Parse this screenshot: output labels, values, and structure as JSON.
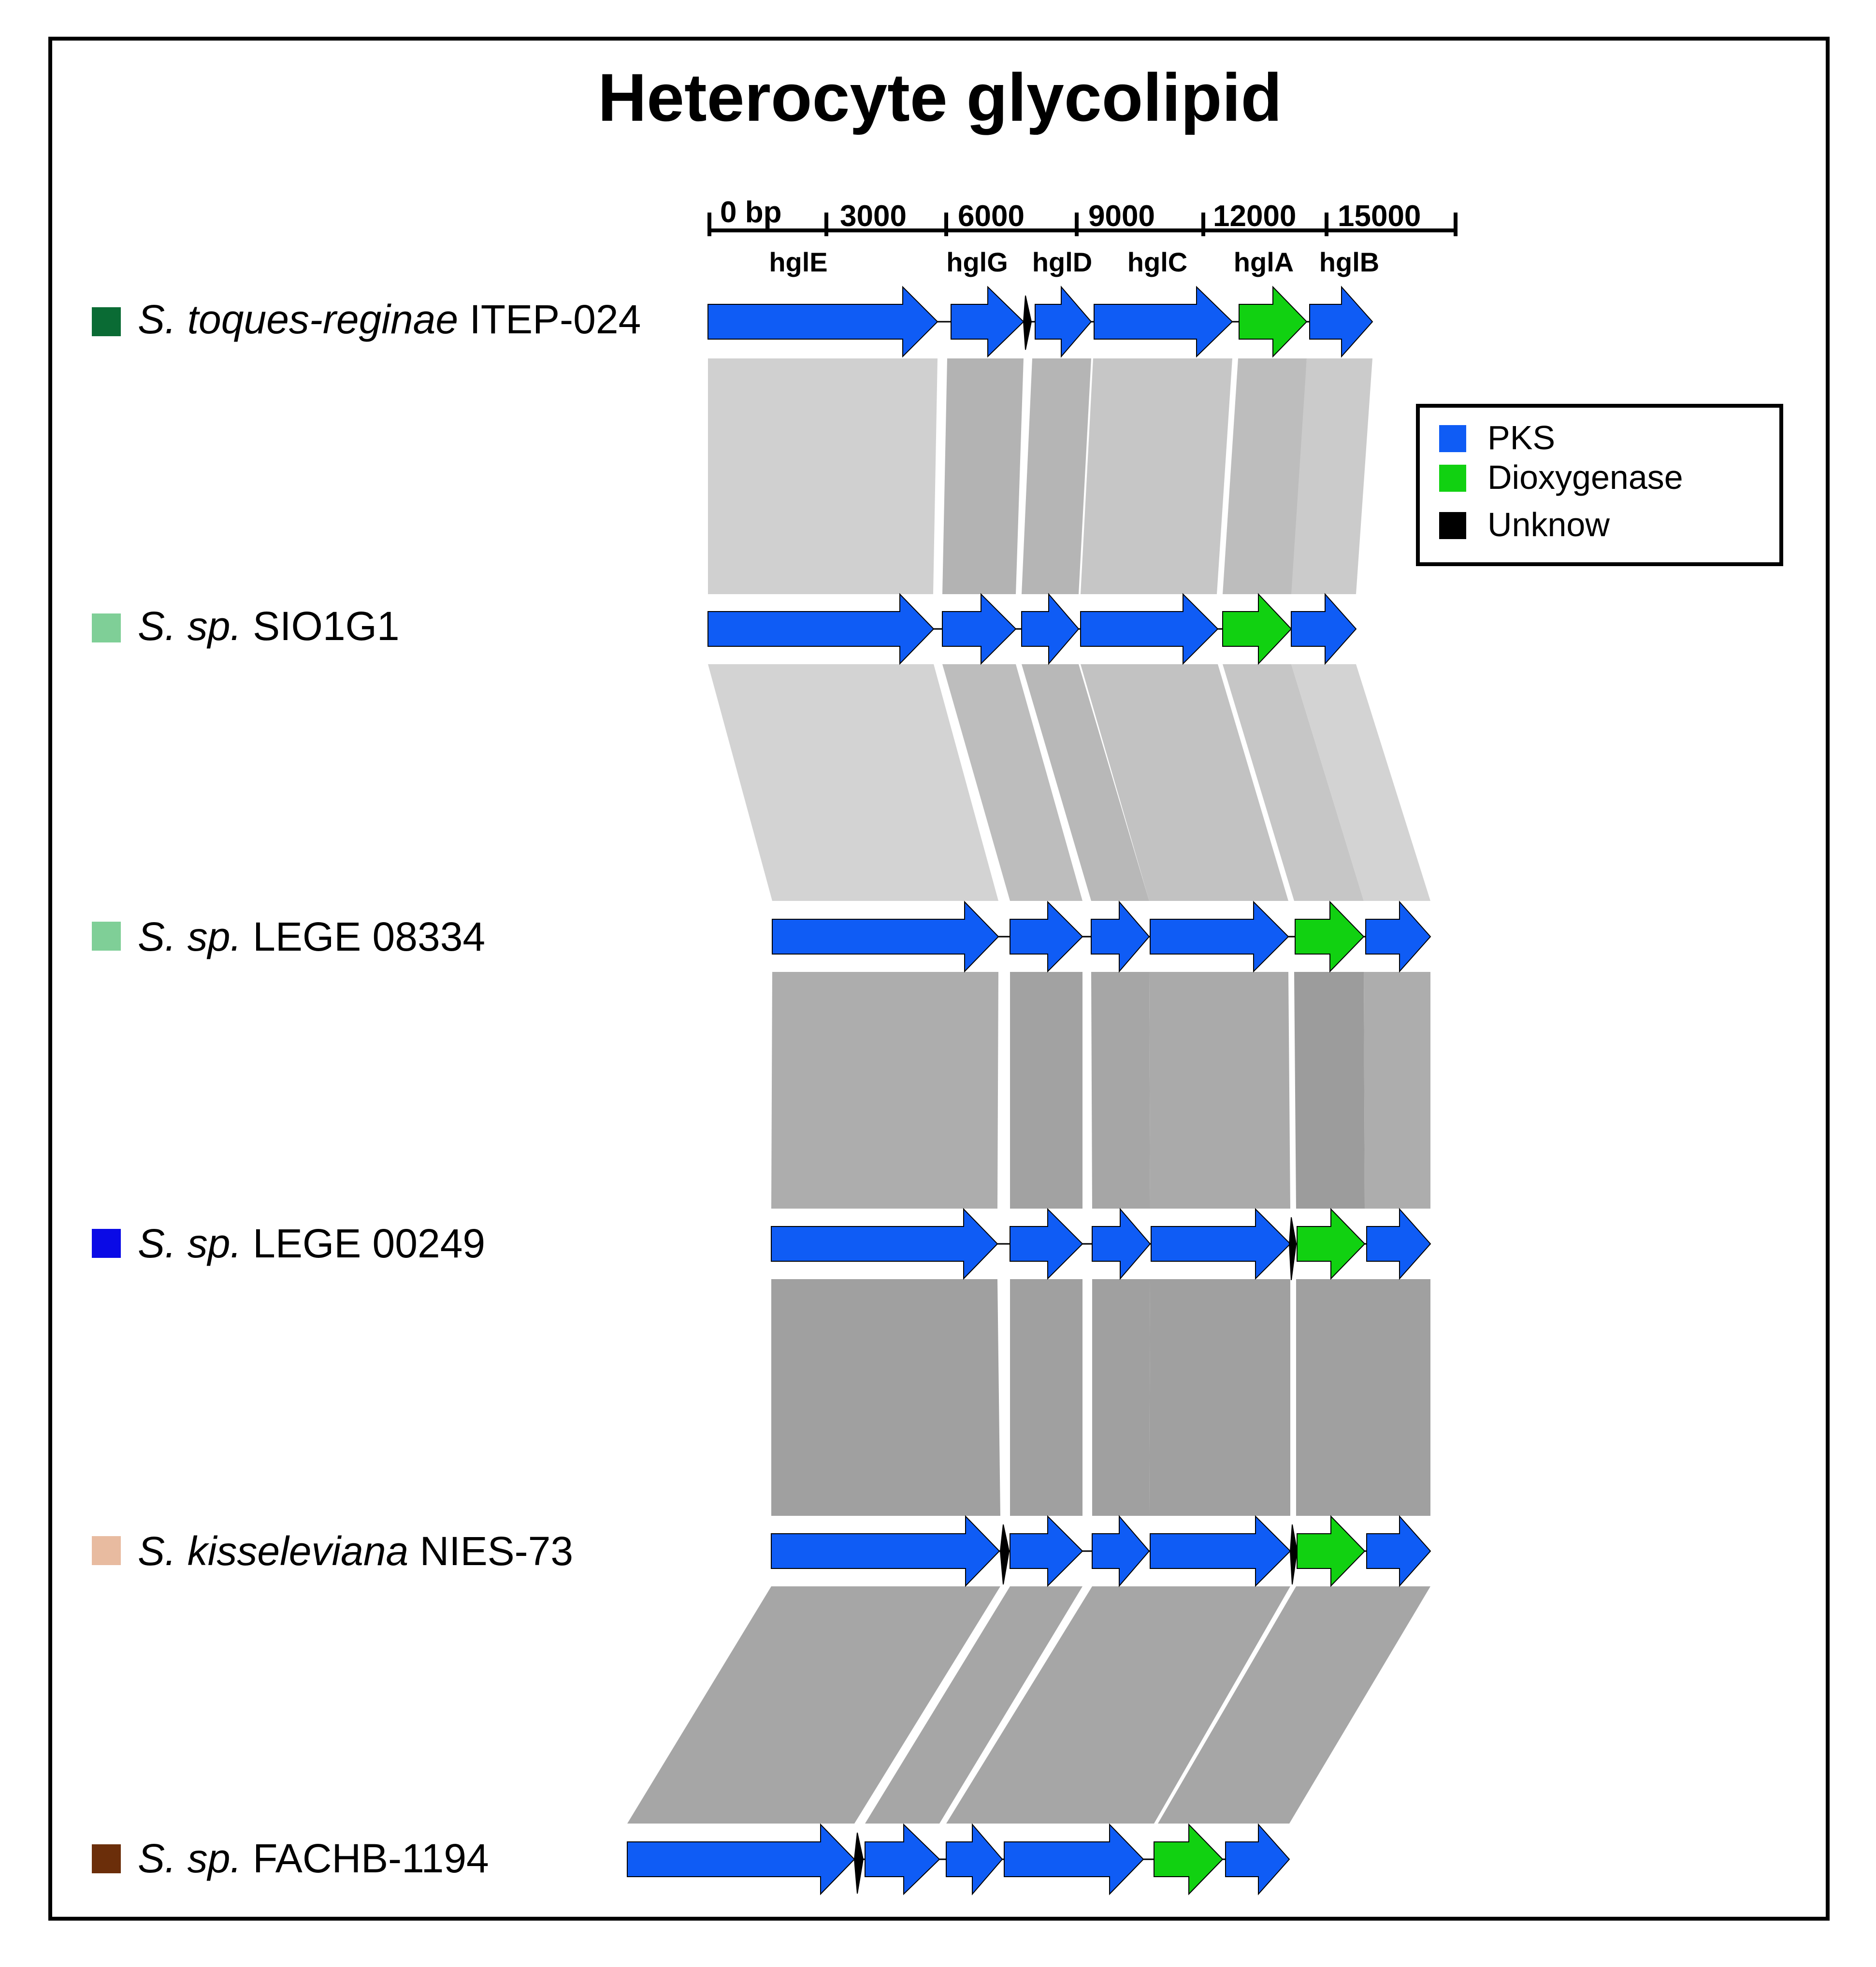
{
  "title": "Heterocyte glycolipid",
  "scale": {
    "ticks": [
      "0 bp",
      "3000",
      "6000",
      "9000",
      "12000",
      "15000"
    ]
  },
  "gene_labels": [
    "hglE",
    "hglG",
    "hglD",
    "hglC",
    "hglA",
    "hglB"
  ],
  "colors": {
    "PKS": "#0f5cf5",
    "Dioxygenase": "#11d111",
    "Unknow": "#000000"
  },
  "legend": {
    "items": [
      {
        "label": "PKS",
        "color": "#0f5cf5"
      },
      {
        "label": "Dioxygenase",
        "color": "#11d111"
      },
      {
        "label": "Unknow",
        "color": "#000000"
      }
    ]
  },
  "tracks": [
    {
      "italic": "S. toques-reginae",
      "strain": "ITEP-024",
      "color": "#0a6b34"
    },
    {
      "italic": "S. sp.",
      "strain": "SIO1G1",
      "color": "#7fcf97"
    },
    {
      "italic": "S. sp.",
      "strain": "LEGE 08334",
      "color": "#7fcf97"
    },
    {
      "italic": "S. sp.",
      "strain": "LEGE 00249",
      "color": "#0a0ae6"
    },
    {
      "italic": "S. kisseleviana",
      "strain": "NIES-73",
      "color": "#e8bba0"
    },
    {
      "italic": "S. sp.",
      "strain": "FACHB-1194",
      "color": "#6b2e0a"
    }
  ],
  "similarity_shades": [
    "#d0d0d0",
    "#cfcfcf",
    "#aaaaaa",
    "#a0a0a0",
    "#a0a0a0"
  ]
}
